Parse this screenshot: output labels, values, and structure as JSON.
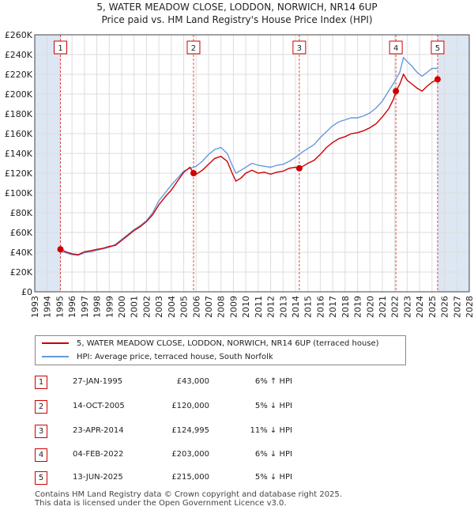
{
  "title_line1": "5, WATER MEADOW CLOSE, LODDON, NORWICH, NR14 6UP",
  "title_line2": "Price paid vs. HM Land Registry's House Price Index (HPI)",
  "colors": {
    "price_line": "#cc0000",
    "hpi_line": "#6699dd",
    "marker_border": "#cc0000",
    "band": "#dde6f3",
    "grid": "#dddddd"
  },
  "chart_data": {
    "type": "line",
    "title": "Price paid vs. HM Land Registry's House Price Index (HPI)",
    "xlim": [
      1993,
      2028
    ],
    "ylim": [
      0,
      260000
    ],
    "x_ticks": [
      1993,
      1994,
      1995,
      1996,
      1997,
      1998,
      1999,
      2000,
      2001,
      2002,
      2003,
      2004,
      2005,
      2006,
      2007,
      2008,
      2009,
      2010,
      2011,
      2012,
      2013,
      2014,
      2015,
      2016,
      2017,
      2018,
      2019,
      2020,
      2021,
      2022,
      2023,
      2024,
      2025,
      2026,
      2027,
      2028
    ],
    "y_ticks": [
      0,
      20000,
      40000,
      60000,
      80000,
      100000,
      120000,
      140000,
      160000,
      180000,
      200000,
      220000,
      240000,
      260000
    ],
    "y_tick_labels": [
      "£0",
      "£20K",
      "£40K",
      "£60K",
      "£80K",
      "£100K",
      "£120K",
      "£140K",
      "£160K",
      "£180K",
      "£200K",
      "£220K",
      "£240K",
      "£260K"
    ],
    "series": [
      {
        "name": "5, WATER MEADOW CLOSE, LODDON, NORWICH, NR14 6UP (terraced house)",
        "color": "#cc0000",
        "points": [
          [
            1995.07,
            43000
          ],
          [
            1995.5,
            40500
          ],
          [
            1996,
            38500
          ],
          [
            1996.5,
            37500
          ],
          [
            1997,
            40500
          ],
          [
            1997.5,
            41500
          ],
          [
            1998,
            43000
          ],
          [
            1998.5,
            44000
          ],
          [
            1999,
            46000
          ],
          [
            1999.5,
            47000
          ],
          [
            2000,
            52000
          ],
          [
            2000.5,
            57000
          ],
          [
            2001,
            62000
          ],
          [
            2001.5,
            66000
          ],
          [
            2002,
            71000
          ],
          [
            2002.5,
            78000
          ],
          [
            2003,
            88000
          ],
          [
            2003.5,
            96000
          ],
          [
            2004,
            103000
          ],
          [
            2004.5,
            112000
          ],
          [
            2005,
            121000
          ],
          [
            2005.5,
            126000
          ],
          [
            2005.79,
            120000
          ],
          [
            2006,
            119000
          ],
          [
            2006.5,
            123000
          ],
          [
            2007,
            129000
          ],
          [
            2007.5,
            135000
          ],
          [
            2008,
            137000
          ],
          [
            2008.5,
            132000
          ],
          [
            2008.9,
            120000
          ],
          [
            2009.2,
            112000
          ],
          [
            2009.6,
            115000
          ],
          [
            2010,
            120000
          ],
          [
            2010.5,
            123000
          ],
          [
            2011,
            120000
          ],
          [
            2011.5,
            121000
          ],
          [
            2012,
            119000
          ],
          [
            2012.5,
            121000
          ],
          [
            2013,
            122000
          ],
          [
            2013.5,
            125000
          ],
          [
            2014,
            126000
          ],
          [
            2014.31,
            124995
          ],
          [
            2014.6,
            127000
          ],
          [
            2015,
            130000
          ],
          [
            2015.5,
            133000
          ],
          [
            2016,
            139000
          ],
          [
            2016.5,
            146000
          ],
          [
            2017,
            151000
          ],
          [
            2017.5,
            155000
          ],
          [
            2018,
            157000
          ],
          [
            2018.5,
            160000
          ],
          [
            2019,
            161000
          ],
          [
            2019.5,
            163000
          ],
          [
            2020,
            166000
          ],
          [
            2020.5,
            170000
          ],
          [
            2021,
            177000
          ],
          [
            2021.5,
            185000
          ],
          [
            2021.9,
            195000
          ],
          [
            2022.1,
            203000
          ],
          [
            2022.4,
            210000
          ],
          [
            2022.7,
            220000
          ],
          [
            2023,
            214000
          ],
          [
            2023.4,
            210000
          ],
          [
            2023.8,
            206000
          ],
          [
            2024.2,
            203000
          ],
          [
            2024.6,
            208000
          ],
          [
            2025.0,
            212000
          ],
          [
            2025.45,
            215000
          ]
        ]
      },
      {
        "name": "HPI: Average price, terraced house, South Norfolk",
        "color": "#6699dd",
        "points": [
          [
            1995,
            40500
          ],
          [
            1995.5,
            39500
          ],
          [
            1996,
            37500
          ],
          [
            1996.5,
            37000
          ],
          [
            1997,
            39500
          ],
          [
            1997.5,
            40500
          ],
          [
            1998,
            42000
          ],
          [
            1998.5,
            43500
          ],
          [
            1999,
            45000
          ],
          [
            1999.5,
            48000
          ],
          [
            2000,
            53000
          ],
          [
            2000.5,
            58000
          ],
          [
            2001,
            63000
          ],
          [
            2001.5,
            67000
          ],
          [
            2002,
            72000
          ],
          [
            2002.5,
            80000
          ],
          [
            2003,
            92000
          ],
          [
            2003.5,
            100000
          ],
          [
            2004,
            108000
          ],
          [
            2004.5,
            115000
          ],
          [
            2005,
            122000
          ],
          [
            2005.5,
            125000
          ],
          [
            2005.8,
            126000
          ],
          [
            2006,
            127000
          ],
          [
            2006.5,
            132000
          ],
          [
            2007,
            139000
          ],
          [
            2007.5,
            144000
          ],
          [
            2008,
            146000
          ],
          [
            2008.5,
            140000
          ],
          [
            2008.9,
            128000
          ],
          [
            2009.2,
            120000
          ],
          [
            2009.6,
            123000
          ],
          [
            2010,
            126000
          ],
          [
            2010.5,
            130000
          ],
          [
            2011,
            128000
          ],
          [
            2011.5,
            127000
          ],
          [
            2012,
            126000
          ],
          [
            2012.5,
            128000
          ],
          [
            2013,
            129000
          ],
          [
            2013.5,
            132000
          ],
          [
            2014,
            136000
          ],
          [
            2014.5,
            141000
          ],
          [
            2015,
            145000
          ],
          [
            2015.5,
            149000
          ],
          [
            2016,
            156000
          ],
          [
            2016.5,
            162000
          ],
          [
            2017,
            168000
          ],
          [
            2017.5,
            172000
          ],
          [
            2018,
            174000
          ],
          [
            2018.5,
            176000
          ],
          [
            2019,
            176000
          ],
          [
            2019.5,
            178000
          ],
          [
            2020,
            181000
          ],
          [
            2020.5,
            186000
          ],
          [
            2021,
            193000
          ],
          [
            2021.5,
            203000
          ],
          [
            2022,
            213000
          ],
          [
            2022.4,
            222000
          ],
          [
            2022.7,
            237000
          ],
          [
            2023,
            233000
          ],
          [
            2023.4,
            228000
          ],
          [
            2023.8,
            222000
          ],
          [
            2024.2,
            218000
          ],
          [
            2024.6,
            222000
          ],
          [
            2025,
            226000
          ],
          [
            2025.45,
            226000
          ]
        ]
      }
    ],
    "sales": [
      {
        "label": "1",
        "x": 1995.07,
        "price": 43000
      },
      {
        "label": "2",
        "x": 2005.79,
        "price": 120000
      },
      {
        "label": "3",
        "x": 2014.31,
        "price": 124995
      },
      {
        "label": "4",
        "x": 2022.09,
        "price": 203000
      },
      {
        "label": "5",
        "x": 2025.45,
        "price": 215000
      }
    ],
    "shaded_ranges": [
      [
        1993,
        1995.07
      ],
      [
        2025.45,
        2028
      ]
    ]
  },
  "legend": {
    "entry1": "5, WATER MEADOW CLOSE, LODDON, NORWICH, NR14 6UP (terraced house)",
    "entry2": "HPI: Average price, terraced house, South Norfolk"
  },
  "transactions": [
    {
      "num": "1",
      "date": "27-JAN-1995",
      "price": "£43,000",
      "hpi": "6% ↑ HPI"
    },
    {
      "num": "2",
      "date": "14-OCT-2005",
      "price": "£120,000",
      "hpi": "5% ↓ HPI"
    },
    {
      "num": "3",
      "date": "23-APR-2014",
      "price": "£124,995",
      "hpi": "11% ↓ HPI"
    },
    {
      "num": "4",
      "date": "04-FEB-2022",
      "price": "£203,000",
      "hpi": "6% ↓ HPI"
    },
    {
      "num": "5",
      "date": "13-JUN-2025",
      "price": "£215,000",
      "hpi": "5% ↓ HPI"
    }
  ],
  "footer": {
    "line1": "Contains HM Land Registry data © Crown copyright and database right 2025.",
    "line2": "This data is licensed under the Open Government Licence v3.0."
  }
}
